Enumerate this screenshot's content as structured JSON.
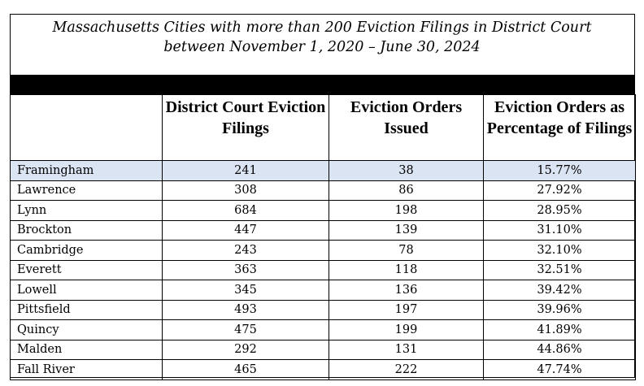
{
  "title": {
    "line1": "Massachusetts Cities with more than 200 Eviction Filings in District Court",
    "line2": "between November 1, 2020 – June 30, 2024"
  },
  "columns": [
    "",
    "District Court Eviction Filings",
    "Eviction Orders Issued",
    "Eviction Orders as Percentage of Filings"
  ],
  "rows": [
    {
      "city": "Framingham",
      "filings": "241",
      "orders": "38",
      "pct": "15.77%"
    },
    {
      "city": "Lawrence",
      "filings": "308",
      "orders": "86",
      "pct": "27.92%"
    },
    {
      "city": "Lynn",
      "filings": "684",
      "orders": "198",
      "pct": "28.95%"
    },
    {
      "city": "Brockton",
      "filings": "447",
      "orders": "139",
      "pct": "31.10%"
    },
    {
      "city": "Cambridge",
      "filings": "243",
      "orders": "78",
      "pct": "32.10%"
    },
    {
      "city": "Everett",
      "filings": "363",
      "orders": "118",
      "pct": "32.51%"
    },
    {
      "city": "Lowell",
      "filings": "345",
      "orders": "136",
      "pct": "39.42%"
    },
    {
      "city": "Pittsfield",
      "filings": "493",
      "orders": "197",
      "pct": "39.96%"
    },
    {
      "city": "Quincy",
      "filings": "475",
      "orders": "199",
      "pct": "41.89%"
    },
    {
      "city": "Malden",
      "filings": "292",
      "orders": "131",
      "pct": "44.86%"
    },
    {
      "city": "Fall River",
      "filings": "465",
      "orders": "222",
      "pct": "47.74%"
    }
  ],
  "colors": {
    "highlight_row": "#dbe4f2",
    "header_bar": "#000000"
  }
}
